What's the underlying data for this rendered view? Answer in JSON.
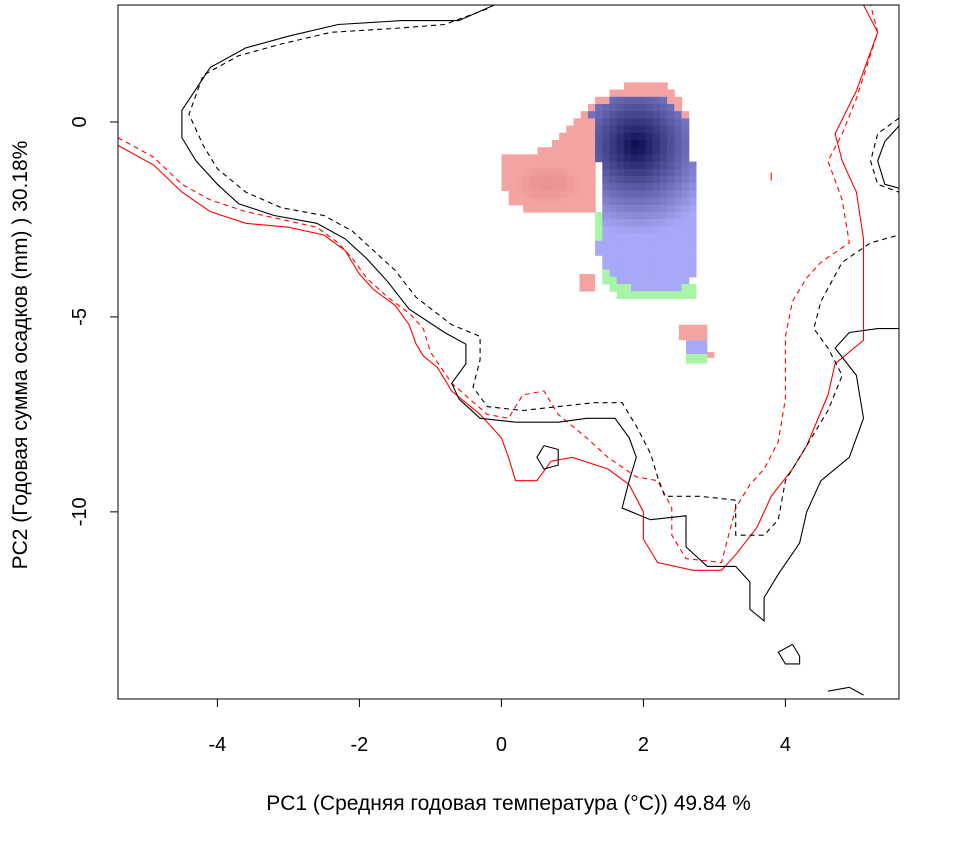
{
  "chart_data": {
    "type": "heatmap",
    "title": "",
    "xlabel": "PC1 (Средняя годовая температура (°C)) 49.84 %",
    "ylabel": "PC2 (Годовая сумма осадков  (mm) ) 30.18%",
    "xlim": [
      -5.4,
      5.6
    ],
    "ylim": [
      -14.8,
      3.0
    ],
    "x_ticks": [
      -4,
      -2,
      0,
      2,
      4
    ],
    "y_ticks": [
      0,
      -5,
      -10
    ],
    "x_tick_labels": [
      "-4",
      "-2",
      "0",
      "2",
      "4"
    ],
    "y_tick_labels": [
      "0",
      "-5",
      "-10"
    ],
    "grid": false,
    "legend": "none",
    "colors": {
      "niche_only_a": "#f4a3a3",
      "niche_only_b": "#a8f5a8",
      "overlap_low": "#a8a8f8",
      "overlap_high": "#0a0a50",
      "contour_red": "#ff0000",
      "contour_black": "#000000"
    },
    "density_peak": [
      1.9,
      -0.6
    ],
    "series": [
      {
        "style": "red-solid",
        "points": [
          [
            -5.4,
            -0.6
          ],
          [
            -4.9,
            -1.1
          ],
          [
            -4.5,
            -1.8
          ],
          [
            -4.1,
            -2.3
          ],
          [
            -3.6,
            -2.6
          ],
          [
            -3.0,
            -2.7
          ],
          [
            -2.5,
            -2.9
          ],
          [
            -2.2,
            -3.3
          ],
          [
            -2.0,
            -3.9
          ],
          [
            -1.8,
            -4.3
          ],
          [
            -1.5,
            -4.7
          ],
          [
            -1.3,
            -5.2
          ],
          [
            -1.2,
            -5.7
          ],
          [
            -1.1,
            -6.0
          ],
          [
            -0.9,
            -6.3
          ],
          [
            -0.7,
            -6.9
          ],
          [
            -0.3,
            -7.5
          ],
          [
            0.0,
            -8.1
          ],
          [
            0.1,
            -8.6
          ],
          [
            0.2,
            -9.2
          ],
          [
            0.5,
            -9.2
          ],
          [
            0.7,
            -8.7
          ],
          [
            1.0,
            -8.6
          ],
          [
            1.5,
            -8.9
          ],
          [
            1.8,
            -9.3
          ],
          [
            2.0,
            -10.0
          ],
          [
            2.0,
            -10.7
          ],
          [
            2.2,
            -11.3
          ],
          [
            2.7,
            -11.5
          ],
          [
            3.1,
            -11.5
          ],
          [
            3.3,
            -11.1
          ],
          [
            3.6,
            -10.4
          ],
          [
            3.8,
            -9.6
          ],
          [
            4.1,
            -8.9
          ],
          [
            4.3,
            -8.3
          ],
          [
            4.6,
            -7.0
          ],
          [
            4.7,
            -6.2
          ],
          [
            5.1,
            -5.6
          ],
          [
            5.1,
            -4.9
          ],
          [
            5.1,
            -4.0
          ],
          [
            5.1,
            -3.0
          ],
          [
            5.0,
            -1.8
          ],
          [
            4.8,
            -1.0
          ],
          [
            4.7,
            -0.3
          ],
          [
            5.0,
            0.8
          ],
          [
            5.3,
            2.3
          ],
          [
            5.1,
            3.0
          ]
        ]
      },
      {
        "style": "red-dashed",
        "points": [
          [
            -5.4,
            -0.4
          ],
          [
            -4.9,
            -0.9
          ],
          [
            -4.5,
            -1.6
          ],
          [
            -4.1,
            -2.0
          ],
          [
            -3.6,
            -2.3
          ],
          [
            -3.1,
            -2.5
          ],
          [
            -2.6,
            -2.7
          ],
          [
            -2.3,
            -3.1
          ],
          [
            -2.1,
            -3.5
          ],
          [
            -1.9,
            -4.0
          ],
          [
            -1.6,
            -4.5
          ],
          [
            -1.3,
            -4.9
          ],
          [
            -1.1,
            -5.3
          ],
          [
            -1.0,
            -5.9
          ],
          [
            -0.7,
            -6.7
          ],
          [
            -0.2,
            -7.5
          ],
          [
            0.1,
            -7.6
          ],
          [
            0.3,
            -7.0
          ],
          [
            0.6,
            -6.9
          ],
          [
            0.8,
            -7.5
          ],
          [
            1.2,
            -8.1
          ],
          [
            1.5,
            -8.6
          ],
          [
            1.9,
            -9.1
          ],
          [
            2.2,
            -9.2
          ],
          [
            2.4,
            -9.9
          ],
          [
            2.4,
            -10.6
          ],
          [
            2.6,
            -11.2
          ],
          [
            3.1,
            -11.3
          ],
          [
            3.2,
            -10.6
          ],
          [
            3.3,
            -9.9
          ],
          [
            3.5,
            -9.3
          ],
          [
            3.7,
            -8.9
          ],
          [
            3.9,
            -8.2
          ],
          [
            4.0,
            -7.1
          ],
          [
            4.0,
            -5.5
          ],
          [
            4.1,
            -4.6
          ],
          [
            4.3,
            -4.0
          ],
          [
            4.5,
            -3.6
          ],
          [
            4.9,
            -3.1
          ],
          [
            4.8,
            -2.0
          ],
          [
            4.6,
            -1.0
          ],
          [
            4.8,
            -0.3
          ],
          [
            5.0,
            0.6
          ],
          [
            5.3,
            2.3
          ],
          [
            5.2,
            3.0
          ]
        ]
      },
      {
        "style": "black-solid",
        "points": [
          [
            -0.1,
            3.0
          ],
          [
            -0.6,
            2.6
          ],
          [
            -1.4,
            2.6
          ],
          [
            -2.3,
            2.5
          ],
          [
            -3.0,
            2.2
          ],
          [
            -3.6,
            1.9
          ],
          [
            -4.1,
            1.4
          ],
          [
            -4.5,
            0.3
          ],
          [
            -4.5,
            -0.4
          ],
          [
            -4.3,
            -1.0
          ],
          [
            -4.0,
            -1.6
          ],
          [
            -3.7,
            -2.1
          ],
          [
            -3.2,
            -2.4
          ],
          [
            -2.6,
            -2.6
          ],
          [
            -2.2,
            -3.0
          ],
          [
            -1.9,
            -3.5
          ],
          [
            -1.6,
            -4.1
          ],
          [
            -1.3,
            -4.8
          ],
          [
            -0.8,
            -5.4
          ],
          [
            -0.5,
            -5.7
          ],
          [
            -0.5,
            -6.2
          ],
          [
            -0.7,
            -6.7
          ],
          [
            -0.6,
            -7.1
          ],
          [
            -0.3,
            -7.6
          ],
          [
            0.2,
            -7.7
          ],
          [
            0.8,
            -7.7
          ],
          [
            1.2,
            -7.6
          ],
          [
            1.6,
            -7.6
          ],
          [
            1.8,
            -8.1
          ],
          [
            1.9,
            -8.6
          ],
          [
            1.8,
            -9.2
          ],
          [
            1.7,
            -9.9
          ],
          [
            2.1,
            -10.2
          ],
          [
            2.6,
            -10.1
          ],
          [
            2.6,
            -10.9
          ],
          [
            2.9,
            -11.4
          ],
          [
            3.3,
            -11.4
          ],
          [
            3.5,
            -11.8
          ],
          [
            3.5,
            -12.5
          ],
          [
            3.7,
            -12.8
          ],
          [
            3.7,
            -12.2
          ],
          [
            3.9,
            -11.6
          ],
          [
            4.2,
            -10.8
          ],
          [
            4.3,
            -10.0
          ],
          [
            4.5,
            -9.2
          ],
          [
            4.9,
            -8.6
          ],
          [
            5.1,
            -7.6
          ],
          [
            5.0,
            -6.5
          ],
          [
            4.7,
            -5.8
          ],
          [
            4.9,
            -5.4
          ],
          [
            5.3,
            -5.3
          ],
          [
            5.6,
            -5.3
          ]
        ]
      },
      {
        "style": "black-dashed",
        "points": [
          [
            -0.2,
            2.9
          ],
          [
            -0.8,
            2.5
          ],
          [
            -1.5,
            2.4
          ],
          [
            -2.4,
            2.3
          ],
          [
            -3.1,
            2.0
          ],
          [
            -3.7,
            1.7
          ],
          [
            -4.2,
            1.2
          ],
          [
            -4.4,
            0.2
          ],
          [
            -4.2,
            -0.6
          ],
          [
            -4.0,
            -1.2
          ],
          [
            -3.6,
            -1.8
          ],
          [
            -3.1,
            -2.2
          ],
          [
            -2.5,
            -2.4
          ],
          [
            -2.1,
            -2.8
          ],
          [
            -1.8,
            -3.3
          ],
          [
            -1.5,
            -3.8
          ],
          [
            -1.2,
            -4.5
          ],
          [
            -0.7,
            -5.2
          ],
          [
            -0.3,
            -5.5
          ],
          [
            -0.3,
            -6.1
          ],
          [
            -0.4,
            -6.8
          ],
          [
            -0.2,
            -7.3
          ],
          [
            0.3,
            -7.4
          ],
          [
            0.8,
            -7.3
          ],
          [
            1.3,
            -7.2
          ],
          [
            1.7,
            -7.2
          ],
          [
            1.9,
            -7.8
          ],
          [
            2.1,
            -8.5
          ],
          [
            2.2,
            -9.1
          ],
          [
            2.3,
            -9.6
          ],
          [
            2.8,
            -9.6
          ],
          [
            3.3,
            -9.7
          ],
          [
            3.3,
            -10.6
          ],
          [
            3.7,
            -10.6
          ],
          [
            3.9,
            -10.2
          ],
          [
            4.0,
            -9.2
          ],
          [
            4.3,
            -8.3
          ],
          [
            4.6,
            -7.4
          ],
          [
            4.8,
            -6.5
          ],
          [
            4.6,
            -5.8
          ],
          [
            4.4,
            -5.3
          ],
          [
            4.5,
            -4.6
          ],
          [
            4.8,
            -3.6
          ],
          [
            5.2,
            -3.1
          ],
          [
            5.6,
            -2.9
          ]
        ]
      },
      {
        "style": "black-solid",
        "points": [
          [
            0.6,
            -8.3
          ],
          [
            0.8,
            -8.4
          ],
          [
            0.8,
            -8.8
          ],
          [
            0.6,
            -8.9
          ],
          [
            0.5,
            -8.6
          ],
          [
            0.6,
            -8.3
          ]
        ]
      },
      {
        "style": "black-solid",
        "points": [
          [
            4.1,
            -13.4
          ],
          [
            4.2,
            -13.7
          ],
          [
            4.2,
            -13.9
          ],
          [
            4.0,
            -13.9
          ],
          [
            3.9,
            -13.6
          ],
          [
            4.1,
            -13.4
          ]
        ]
      },
      {
        "style": "black-solid",
        "points": [
          [
            5.6,
            -0.1
          ],
          [
            5.4,
            -0.5
          ],
          [
            5.3,
            -1.0
          ],
          [
            5.4,
            -1.6
          ],
          [
            5.6,
            -1.7
          ]
        ]
      },
      {
        "style": "black-dashed",
        "points": [
          [
            5.6,
            0.1
          ],
          [
            5.3,
            -0.3
          ],
          [
            5.2,
            -1.0
          ],
          [
            5.3,
            -1.6
          ],
          [
            5.6,
            -1.8
          ]
        ]
      },
      {
        "style": "black-solid",
        "points": [
          [
            4.6,
            -14.6
          ],
          [
            4.9,
            -14.5
          ],
          [
            5.1,
            -14.7
          ]
        ]
      },
      {
        "style": "red-solid",
        "points": [
          [
            3.8,
            -1.3
          ],
          [
            3.8,
            -1.5
          ]
        ]
      }
    ]
  }
}
